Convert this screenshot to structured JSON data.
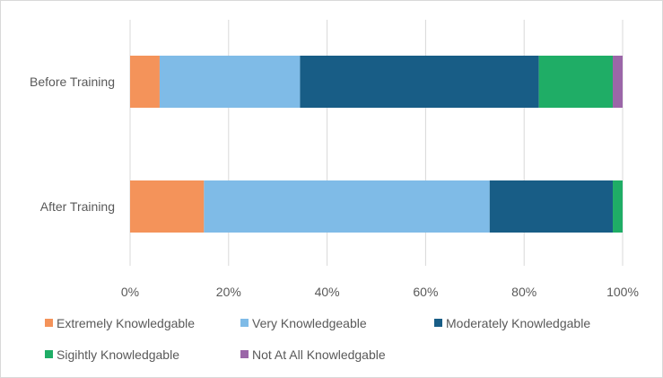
{
  "chart_data": {
    "type": "bar",
    "orientation": "horizontal",
    "stacked": "percent",
    "title": "",
    "xlabel": "",
    "ylabel": "",
    "xlim": [
      0,
      100
    ],
    "x_ticks": [
      "0%",
      "20%",
      "40%",
      "60%",
      "80%",
      "100%"
    ],
    "grid": "vertical",
    "legend_position": "bottom",
    "categories": [
      "Before Training",
      "After Training"
    ],
    "series": [
      {
        "name": "Extremely Knowledgable",
        "color": "#f4935a",
        "values": [
          6,
          15
        ]
      },
      {
        "name": "Very Knowledgeable",
        "color": "#7fbbe7",
        "values": [
          28.5,
          58
        ]
      },
      {
        "name": "Moderately Knowledgable",
        "color": "#185d86",
        "values": [
          48.5,
          25
        ]
      },
      {
        "name": "Sigihtly Knowledgable",
        "color": "#1fad66",
        "values": [
          15,
          2
        ]
      },
      {
        "name": "Not At All Knowledgable",
        "color": "#9b66a8",
        "values": [
          2,
          0
        ]
      }
    ]
  }
}
